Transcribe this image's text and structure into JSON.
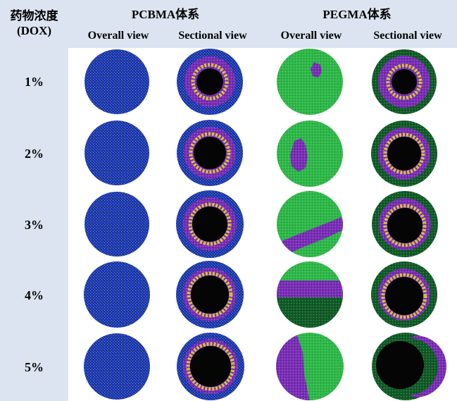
{
  "header": {
    "corner_line1": "药物浓度",
    "corner_line2": "(DOX)",
    "groups": [
      {
        "label": "PCBMA体系"
      },
      {
        "label": "PEGMA体系"
      }
    ],
    "subheaders": [
      "Overall view",
      "Sectional view",
      "Overall view",
      "Sectional view"
    ]
  },
  "rows": [
    {
      "label": "1%"
    },
    {
      "label": "2%"
    },
    {
      "label": "3%"
    },
    {
      "label": "4%"
    },
    {
      "label": "5%"
    }
  ],
  "colors": {
    "header_bg": "#dbe4f0",
    "pcbma_shell": "#1f35b8",
    "pegma_shell": "#2fb84a",
    "drug_purple": "#7a2fb5",
    "drug_yellow": "#d8c23a",
    "core_black": "#050505"
  }
}
